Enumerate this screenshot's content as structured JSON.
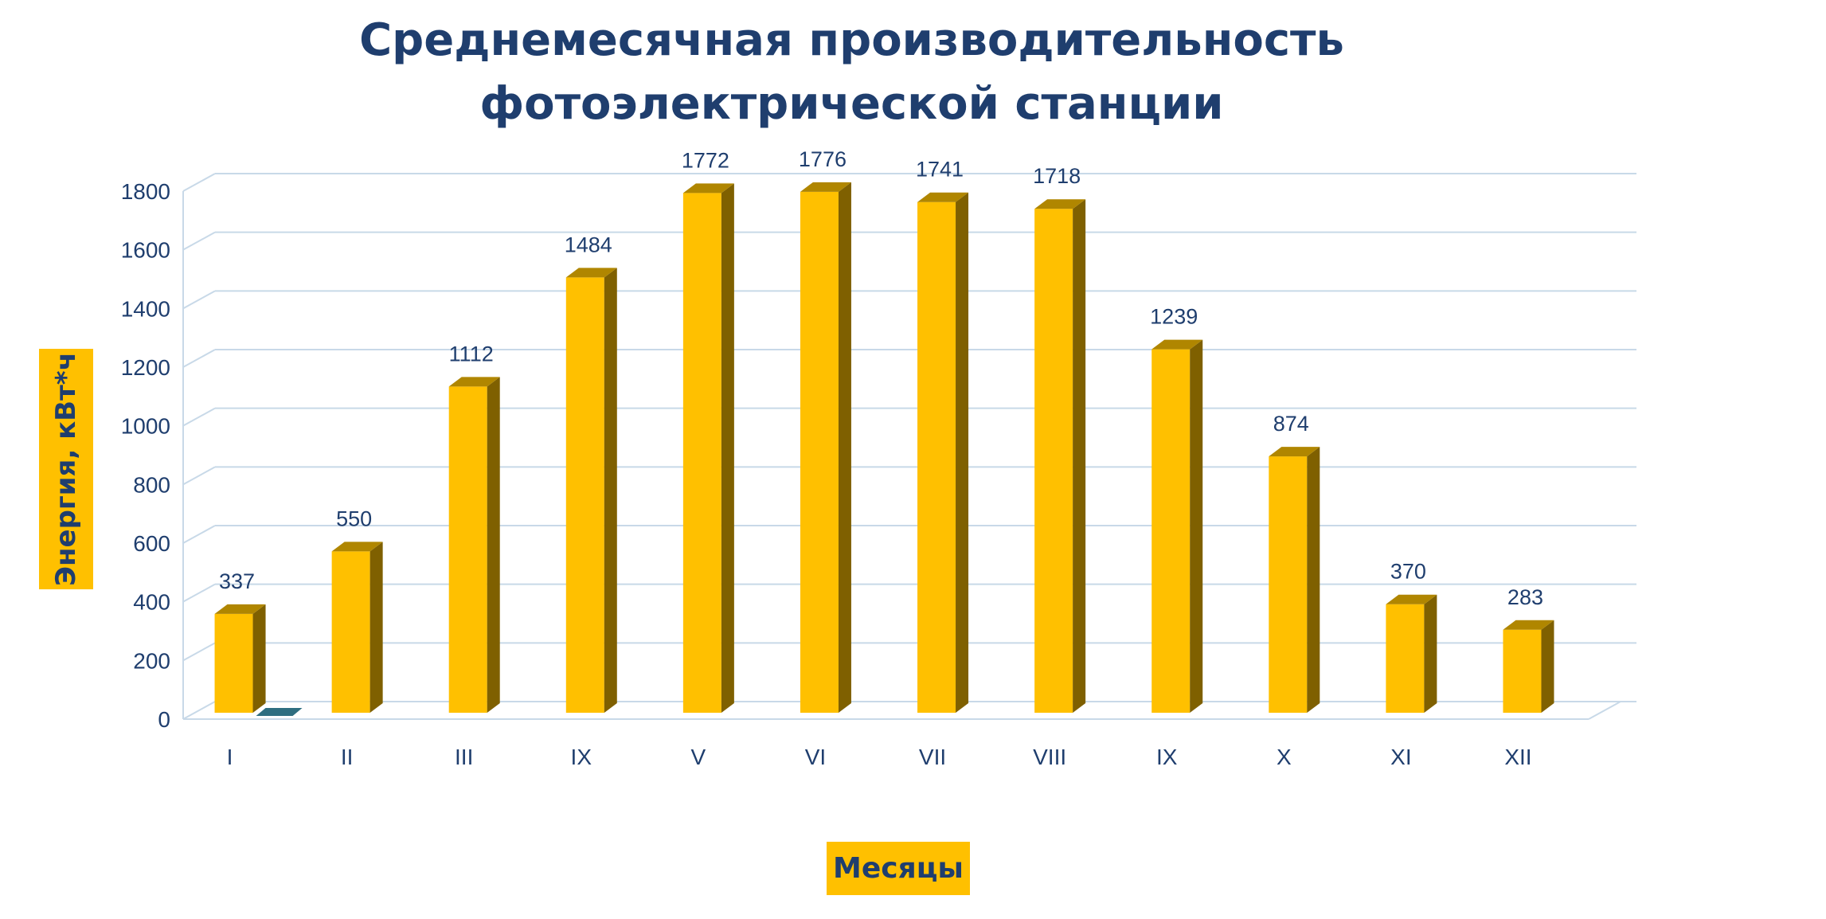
{
  "chart_data": {
    "type": "bar",
    "title_lines": [
      "Среднемесячная производительность",
      "фотоэлектрической станции"
    ],
    "ylabel": "Энергия, кВт*ч",
    "xlabel": "Месяцы",
    "categories": [
      "I",
      "II",
      "III",
      "IX",
      "V",
      "VI",
      "VII",
      "VIII",
      "IX",
      "X",
      "XI",
      "XII"
    ],
    "values": [
      337,
      550,
      1112,
      1484,
      1772,
      1776,
      1741,
      1718,
      1239,
      874,
      370,
      283
    ],
    "ylim": [
      0,
      1800
    ],
    "yticks": [
      0,
      200,
      400,
      600,
      800,
      1000,
      1200,
      1400,
      1600,
      1800
    ],
    "grid": true,
    "style": "3d-column",
    "colors": {
      "bar_front": "#ffc000",
      "bar_side": "#7f6000",
      "bar_top": "#b08600",
      "second_series": "#2e6e80",
      "text": "#1f3e6e",
      "grid": "#c8d9e8"
    }
  }
}
